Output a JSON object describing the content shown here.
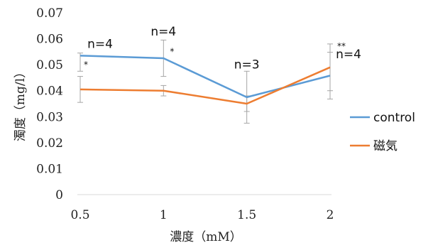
{
  "chart_data": {
    "type": "line",
    "title": "",
    "xlabel": "濃度（mM）",
    "ylabel": "濁度（mg/l）",
    "x": [
      0.5,
      1,
      1.5,
      2
    ],
    "x_tick_labels": [
      "0.5",
      "1",
      "1.5",
      "2"
    ],
    "y_ticks": [
      0,
      0.01,
      0.02,
      0.03,
      0.04,
      0.05,
      0.06,
      0.07
    ],
    "y_tick_labels": [
      "0",
      "0.01",
      "0.02",
      "0.03",
      "0.04",
      "0.05",
      "0.06",
      "0.07"
    ],
    "ylim": [
      0,
      0.07
    ],
    "grid": false,
    "legend_position": "right",
    "series": [
      {
        "name": "control",
        "color": "#5b9bd5",
        "values": [
          0.0535,
          0.0525,
          0.0375,
          0.0458
        ],
        "error_low": [
          0.0475,
          0.0455,
          0.0275,
          0.0368
        ],
        "error_high": [
          0.0545,
          0.0595,
          0.0475,
          0.0548
        ]
      },
      {
        "name": "磁気",
        "color": "#ed7d31",
        "values": [
          0.0405,
          0.04,
          0.035,
          0.049
        ],
        "error_low": [
          0.0355,
          0.038,
          0.032,
          0.04
        ],
        "error_high": [
          0.0455,
          0.042,
          0.038,
          0.058
        ]
      }
    ],
    "annotations": [
      {
        "text": "n=4",
        "x": 0.5,
        "y": 0.0565,
        "kind": "n"
      },
      {
        "text": "n=4",
        "x": 1,
        "y": 0.0612,
        "kind": "n"
      },
      {
        "text": "n=3",
        "x": 1.5,
        "y": 0.0485,
        "kind": "n"
      },
      {
        "text": "n=4",
        "x": 2,
        "y": 0.0525,
        "kind": "n"
      },
      {
        "text": "*",
        "x": 0.5,
        "y": 0.049,
        "kind": "star"
      },
      {
        "text": "*",
        "x": 1,
        "y": 0.054,
        "kind": "star"
      },
      {
        "text": "**",
        "x": 2,
        "y": 0.056,
        "kind": "star"
      }
    ]
  }
}
